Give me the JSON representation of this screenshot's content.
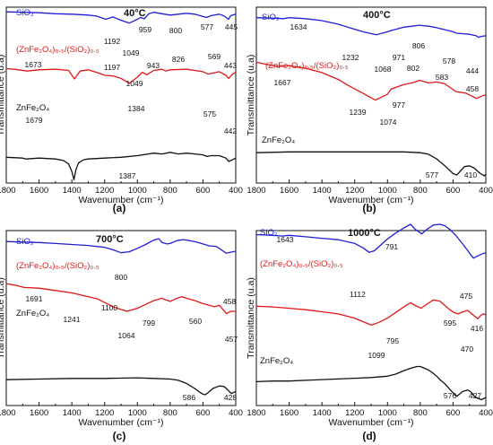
{
  "panels": [
    {
      "letter": "(a)",
      "temp": "40°C",
      "xlabel": "Wavenumber (cm⁻¹)",
      "ylabel": "Transmittance (u.a)",
      "xticks": [
        "1800",
        "1600",
        "1400",
        "1200",
        "1000",
        "800",
        "600",
        "400"
      ],
      "labels": {
        "sio2": "SiO₂",
        "composite": "(ZnFe₂O₄)₀.₅/(SiO₂)₀.₅",
        "znfe": "ZnFe₂O₄"
      },
      "annotations": [
        "1192",
        "959",
        "800",
        "577",
        "445",
        "1049",
        "1673",
        "1197",
        "943",
        "826",
        "569",
        "443",
        "1049",
        "1384",
        "1679",
        "575",
        "442",
        "1387"
      ]
    },
    {
      "letter": "(b)",
      "temp": "400°C",
      "xlabel": "Wavenumber (cm⁻¹)",
      "ylabel": "Transmittance (u.a)",
      "xticks": [
        "1800",
        "1600",
        "1400",
        "1200",
        "1000",
        "800",
        "600",
        "400"
      ],
      "labels": {
        "sio2": "SiO₂",
        "composite": "(ZnFe₂O₄)₀.₅/(SiO₂)₀.₅",
        "znfe": "ZnFe₂O₄"
      },
      "annotations": [
        "1634",
        "1232",
        "971",
        "806",
        "578",
        "444",
        "1068",
        "1667",
        "802",
        "583",
        "458",
        "1239",
        "977",
        "1074",
        "577",
        "410"
      ]
    },
    {
      "letter": "(c)",
      "temp": "700°C",
      "xlabel": "Wavenumber (cm⁻¹)",
      "ylabel": "Transmittance (u.a)",
      "xticks": [
        "1800",
        "1600",
        "1400",
        "1200",
        "1000",
        "800",
        "600",
        "400"
      ],
      "labels": {
        "sio2": "SiO₂",
        "composite": "(ZnFe₂O₄)₀.₅/(SiO₂)₀.₅",
        "znfe": "ZnFe₂O₄"
      },
      "annotations": [
        "800",
        "1691",
        "1100",
        "458",
        "1241",
        "799",
        "560",
        "457",
        "1064",
        "586",
        "428"
      ]
    },
    {
      "letter": "(d)",
      "temp": "1000°C",
      "xlabel": "Wavenumber (cm⁻¹)",
      "ylabel": "Transmittance (u.a)",
      "xticks": [
        "1800",
        "1600",
        "1400",
        "1200",
        "1000",
        "800",
        "600",
        "400"
      ],
      "labels": {
        "sio2": "SiO₂",
        "composite": "(ZnFe₂O₄)₀.₅/(SiO₂)₀.₅",
        "znfe": "ZnFe₂O₄"
      },
      "annotations": [
        "1643",
        "791",
        "1112",
        "475",
        "795",
        "595",
        "416",
        "1099",
        "470",
        "576",
        "427"
      ]
    }
  ],
  "colors": {
    "sio2": "#1f1fd6",
    "composite": "#e01818",
    "znfe": "#111111"
  },
  "chart_data": [
    {
      "type": "line",
      "xlim": [
        1800,
        400
      ],
      "xlabel": "Wavenumber (cm⁻¹)",
      "ylabel": "Transmittance (u.a)",
      "series": [
        {
          "name": "SiO₂",
          "x": [
            1800,
            1700,
            1600,
            1500,
            1400,
            1300,
            1250,
            1192,
            1150,
            1100,
            1049,
            1000,
            980,
            959,
            930,
            900,
            850,
            800,
            750,
            700,
            650,
            600,
            577,
            550,
            500,
            470,
            445,
            430,
            400
          ],
          "y": [
            0.9,
            0.89,
            0.88,
            0.86,
            0.85,
            0.83,
            0.81,
            0.74,
            0.79,
            0.72,
            0.66,
            0.74,
            0.78,
            0.75,
            0.86,
            0.89,
            0.86,
            0.83,
            0.85,
            0.87,
            0.85,
            0.8,
            0.78,
            0.82,
            0.85,
            0.81,
            0.74,
            0.82,
            0.85
          ]
        },
        {
          "name": "(ZnFe₂O₄)₀.₅/(SiO₂)₀.₅",
          "x": [
            1800,
            1750,
            1673,
            1600,
            1500,
            1420,
            1384,
            1350,
            1300,
            1250,
            1197,
            1150,
            1100,
            1049,
            1000,
            970,
            943,
            900,
            850,
            826,
            800,
            700,
            600,
            569,
            500,
            460,
            443,
            420,
            400
          ],
          "y": [
            0.64,
            0.63,
            0.6,
            0.62,
            0.63,
            0.61,
            0.47,
            0.6,
            0.62,
            0.58,
            0.53,
            0.52,
            0.48,
            0.4,
            0.5,
            0.58,
            0.54,
            0.61,
            0.63,
            0.6,
            0.62,
            0.63,
            0.59,
            0.55,
            0.59,
            0.53,
            0.48,
            0.55,
            0.58
          ]
        },
        {
          "name": "ZnFe₂O₄",
          "x": [
            1800,
            1700,
            1679,
            1600,
            1500,
            1450,
            1420,
            1400,
            1387,
            1375,
            1360,
            1330,
            1300,
            1200,
            1100,
            1000,
            900,
            850,
            800,
            750,
            700,
            650,
            600,
            575,
            550,
            500,
            460,
            442,
            420,
            400
          ],
          "y": [
            0.29,
            0.28,
            0.27,
            0.28,
            0.27,
            0.25,
            0.21,
            0.12,
            0.02,
            0.14,
            0.22,
            0.26,
            0.27,
            0.28,
            0.29,
            0.31,
            0.34,
            0.33,
            0.35,
            0.33,
            0.34,
            0.33,
            0.32,
            0.3,
            0.31,
            0.31,
            0.28,
            0.24,
            0.26,
            0.28
          ]
        }
      ]
    },
    {
      "type": "line",
      "xlim": [
        1800,
        400
      ],
      "xlabel": "Wavenumber (cm⁻¹)",
      "ylabel": "Transmittance (u.a)",
      "series": [
        {
          "name": "SiO₂",
          "x": [
            1800,
            1700,
            1634,
            1600,
            1500,
            1400,
            1300,
            1232,
            1150,
            1068,
            1000,
            971,
            900,
            850,
            806,
            750,
            700,
            650,
            600,
            578,
            500,
            460,
            444,
            420,
            400
          ],
          "y": [
            0.97,
            0.96,
            0.95,
            0.97,
            0.95,
            0.91,
            0.84,
            0.77,
            0.69,
            0.63,
            0.69,
            0.72,
            0.78,
            0.8,
            0.82,
            0.8,
            0.77,
            0.73,
            0.69,
            0.66,
            0.64,
            0.61,
            0.58,
            0.6,
            0.61
          ]
        },
        {
          "name": "(ZnFe₂O₄)₀.₅/(SiO₂)₀.₅",
          "x": [
            1800,
            1750,
            1667,
            1600,
            1500,
            1400,
            1300,
            1239,
            1150,
            1074,
            1000,
            977,
            900,
            850,
            802,
            750,
            700,
            650,
            583,
            520,
            458,
            420,
            400
          ],
          "y": [
            0.84,
            0.82,
            0.79,
            0.8,
            0.77,
            0.72,
            0.64,
            0.57,
            0.48,
            0.4,
            0.47,
            0.53,
            0.58,
            0.6,
            0.63,
            0.6,
            0.61,
            0.59,
            0.5,
            0.48,
            0.42,
            0.45,
            0.46
          ]
        },
        {
          "name": "ZnFe₂O₄",
          "x": [
            1800,
            1600,
            1400,
            1200,
            1000,
            900,
            800,
            750,
            700,
            650,
            620,
            600,
            577,
            560,
            530,
            500,
            470,
            440,
            410,
            400
          ],
          "y": [
            0.3,
            0.31,
            0.31,
            0.31,
            0.31,
            0.31,
            0.3,
            0.28,
            0.22,
            0.13,
            0.07,
            0.03,
            0.01,
            0.05,
            0.12,
            0.13,
            0.1,
            0.04,
            0.0,
            0.02
          ]
        }
      ]
    },
    {
      "type": "line",
      "xlim": [
        1800,
        400
      ],
      "xlabel": "Wavenumber (cm⁻¹)",
      "ylabel": "Transmittance (u.a)",
      "series": [
        {
          "name": "SiO₂",
          "x": [
            1800,
            1700,
            1600,
            1500,
            1400,
            1300,
            1200,
            1150,
            1100,
            1050,
            1000,
            950,
            900,
            870,
            850,
            820,
            800,
            760,
            720,
            680,
            640,
            600,
            560,
            520,
            500,
            480,
            458,
            430,
            400
          ],
          "y": [
            0.94,
            0.93,
            0.92,
            0.9,
            0.88,
            0.86,
            0.82,
            0.77,
            0.71,
            0.73,
            0.8,
            0.88,
            0.97,
            1.0,
            0.92,
            0.89,
            0.9,
            0.96,
            0.98,
            0.96,
            0.93,
            0.89,
            0.85,
            0.84,
            0.8,
            0.75,
            0.7,
            0.72,
            0.74
          ]
        },
        {
          "name": "(ZnFe₂O₄)₀.₅/(SiO₂)₀.₅",
          "x": [
            1800,
            1750,
            1691,
            1600,
            1500,
            1400,
            1300,
            1241,
            1150,
            1064,
            1000,
            950,
            900,
            850,
            830,
            799,
            770,
            730,
            700,
            650,
            600,
            560,
            530,
            500,
            457,
            430,
            400
          ],
          "y": [
            0.72,
            0.7,
            0.67,
            0.66,
            0.63,
            0.6,
            0.55,
            0.52,
            0.42,
            0.36,
            0.4,
            0.45,
            0.5,
            0.53,
            0.51,
            0.49,
            0.52,
            0.55,
            0.53,
            0.5,
            0.46,
            0.44,
            0.42,
            0.44,
            0.33,
            0.36,
            0.36
          ]
        },
        {
          "name": "ZnFe₂O₄",
          "x": [
            1800,
            1600,
            1400,
            1200,
            1000,
            900,
            800,
            750,
            700,
            650,
            620,
            600,
            586,
            570,
            540,
            500,
            470,
            450,
            428,
            410,
            400
          ],
          "y": [
            0.24,
            0.25,
            0.26,
            0.26,
            0.27,
            0.26,
            0.25,
            0.23,
            0.18,
            0.1,
            0.04,
            0.01,
            0.0,
            0.03,
            0.1,
            0.14,
            0.13,
            0.08,
            0.02,
            0.04,
            0.05
          ]
        }
      ]
    },
    {
      "type": "line",
      "xlim": [
        1800,
        400
      ],
      "xlabel": "Wavenumber (cm⁻¹)",
      "ylabel": "Transmittance (u.a)",
      "series": [
        {
          "name": "SiO₂",
          "x": [
            1800,
            1700,
            1643,
            1600,
            1500,
            1400,
            1300,
            1200,
            1150,
            1112,
            1080,
            1050,
            1000,
            950,
            900,
            860,
            830,
            791,
            760,
            720,
            680,
            650,
            620,
            580,
            540,
            510,
            490,
            475,
            450,
            420,
            400
          ],
          "y": [
            0.86,
            0.85,
            0.84,
            0.85,
            0.83,
            0.81,
            0.79,
            0.74,
            0.68,
            0.62,
            0.64,
            0.7,
            0.8,
            0.88,
            0.95,
            1.0,
            0.93,
            0.87,
            0.93,
            0.99,
            1.0,
            0.98,
            0.93,
            0.84,
            0.73,
            0.64,
            0.58,
            0.54,
            0.57,
            0.6,
            0.61
          ]
        },
        {
          "name": "(ZnFe₂O₄)₀.₅/(SiO₂)₀.₅",
          "x": [
            1800,
            1700,
            1600,
            1500,
            1400,
            1300,
            1200,
            1150,
            1099,
            1050,
            1000,
            950,
            900,
            860,
            830,
            795,
            760,
            720,
            680,
            650,
            620,
            595,
            570,
            540,
            510,
            490,
            470,
            450,
            430,
            416,
            400
          ],
          "y": [
            0.65,
            0.64,
            0.62,
            0.6,
            0.57,
            0.54,
            0.48,
            0.43,
            0.38,
            0.42,
            0.48,
            0.56,
            0.64,
            0.7,
            0.66,
            0.62,
            0.68,
            0.74,
            0.72,
            0.66,
            0.6,
            0.56,
            0.54,
            0.57,
            0.59,
            0.55,
            0.51,
            0.47,
            0.52,
            0.54,
            0.53
          ]
        },
        {
          "name": "ZnFe₂O₄",
          "x": [
            1800,
            1700,
            1600,
            1500,
            1400,
            1300,
            1200,
            1100,
            1000,
            950,
            900,
            850,
            820,
            800,
            780,
            750,
            720,
            700,
            680,
            650,
            620,
            600,
            576,
            560,
            540,
            510,
            490,
            470,
            450,
            427,
            410,
            400
          ],
          "y": [
            0.28,
            0.29,
            0.29,
            0.3,
            0.31,
            0.32,
            0.33,
            0.34,
            0.36,
            0.39,
            0.44,
            0.48,
            0.5,
            0.5,
            0.48,
            0.45,
            0.4,
            0.36,
            0.31,
            0.25,
            0.17,
            0.12,
            0.07,
            0.1,
            0.14,
            0.16,
            0.13,
            0.07,
            0.04,
            0.02,
            0.04,
            0.05
          ]
        }
      ]
    }
  ]
}
